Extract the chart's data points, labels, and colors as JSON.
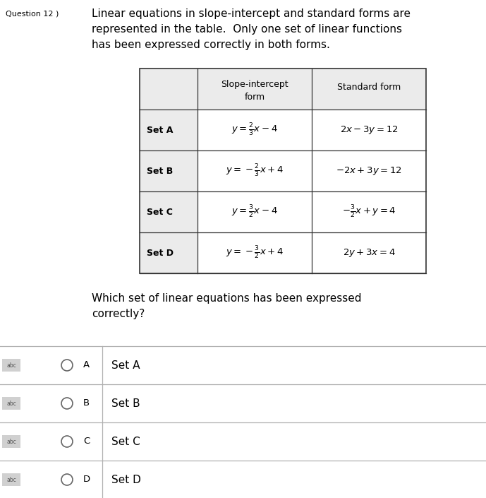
{
  "title_question": "Question 12 )",
  "title_text_lines": [
    "Linear equations in slope-intercept and standard forms are",
    "represented in the table.  Only one set of linear functions",
    "has been expressed correctly in both forms."
  ],
  "slope_intercept_exprs": [
    "$y = \\frac{2}{3}x - 4$",
    "$y = -\\frac{2}{3}x + 4$",
    "$y = \\frac{3}{2}x - 4$",
    "$y = -\\frac{3}{2}x + 4$"
  ],
  "standard_exprs": [
    "$2x - 3y = 12$",
    "$- 2x + 3y = 12$",
    "$-\\frac{3}{2}x + y = 4$",
    "$2y + 3x = 4$"
  ],
  "row_labels": [
    "Set A",
    "Set B",
    "Set C",
    "Set D"
  ],
  "sub_question_line1": "Which set of linear equations has been expressed",
  "sub_question_line2": "correctly?",
  "choices": [
    {
      "letter": "A",
      "text": "Set A"
    },
    {
      "letter": "B",
      "text": "Set B"
    },
    {
      "letter": "C",
      "text": "Set C"
    },
    {
      "letter": "D",
      "text": "Set D"
    }
  ],
  "bg_color": "#ffffff",
  "table_header_bg": "#ebebeb",
  "table_border_color": "#333333",
  "text_color": "#000000",
  "choice_divider_color": "#b0b0b0",
  "abc_bg_color": "#d0d0d0",
  "abc_text_color": "#555555",
  "circle_color": "#666666"
}
